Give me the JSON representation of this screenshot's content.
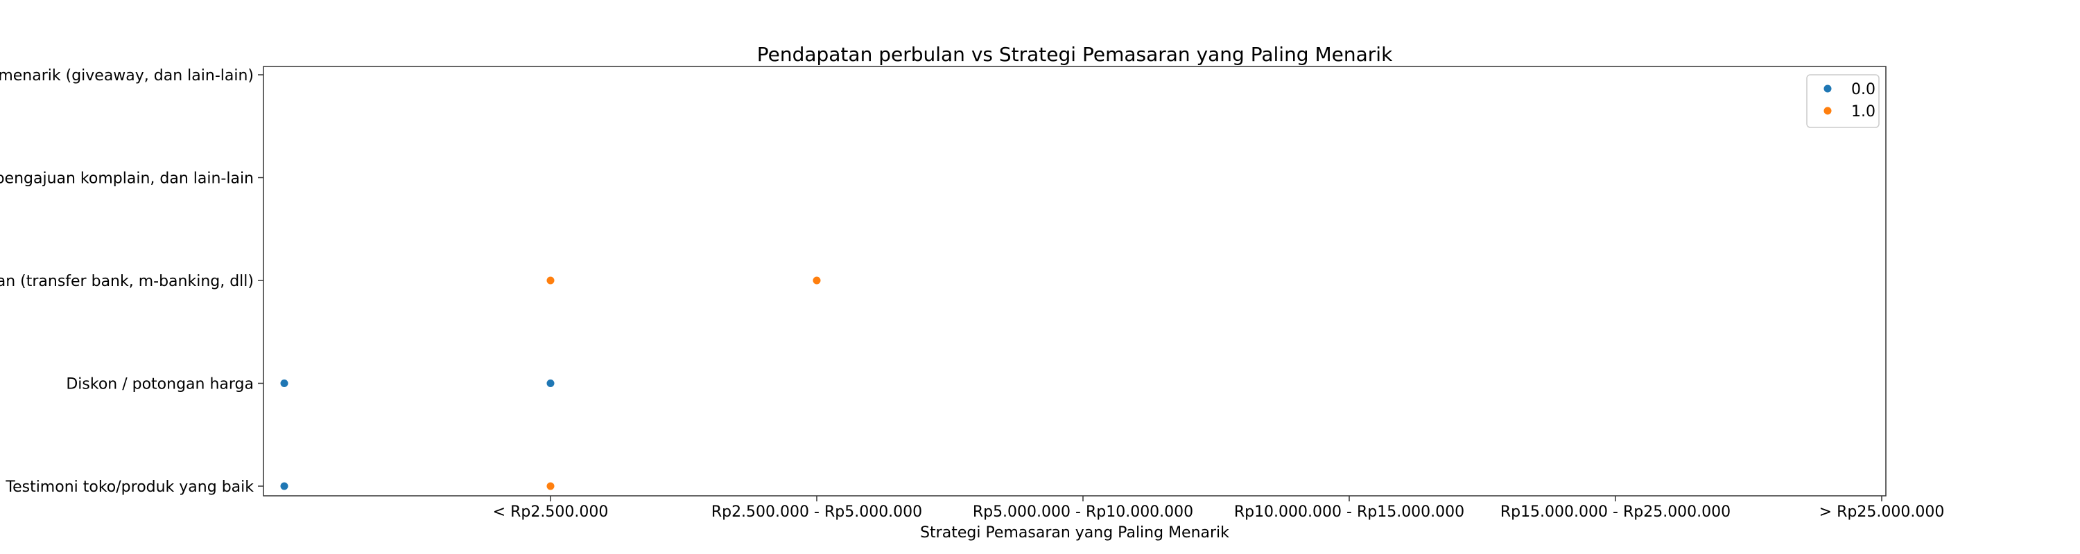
{
  "chart_data": {
    "type": "scatter",
    "title": "Pendapatan perbulan vs Strategi Pemasaran yang Paling Menarik",
    "xlabel": "Strategi Pemasaran yang Paling Menarik",
    "ylabel": "",
    "x_categories": [
      "",
      "< Rp2.500.000",
      "Rp2.500.000 - Rp5.000.000",
      "Rp5.000.000 - Rp10.000.000",
      "Rp10.000.000 - Rp15.000.000",
      "Rp15.000.000 - Rp25.000.000",
      "> Rp25.000.000"
    ],
    "y_categories": [
      "Testimoni toko/produk yang baik",
      "Diskon / potongan harga",
      "Kemudahan pembayaran (transfer bank, m-banking, dll)",
      "Kemudahan pengajuan komplain, dan lain-lain",
      "Promo menarik (giveaway, dan lain-lain)"
    ],
    "legend_position": "top-right",
    "grid": false,
    "series": [
      {
        "name": "0.0",
        "color": "#1f77b4",
        "points": [
          {
            "x": "",
            "y": "Testimoni toko/produk yang baik"
          },
          {
            "x": "",
            "y": "Diskon / potongan harga"
          },
          {
            "x": "< Rp2.500.000",
            "y": "Diskon / potongan harga"
          }
        ]
      },
      {
        "name": "1.0",
        "color": "#ff7f0e",
        "points": [
          {
            "x": "< Rp2.500.000",
            "y": "Testimoni toko/produk yang baik"
          },
          {
            "x": "< Rp2.500.000",
            "y": "Kemudahan pembayaran (transfer bank, m-banking, dll)"
          },
          {
            "x": "Rp2.500.000 - Rp5.000.000",
            "y": "Kemudahan pembayaran (transfer bank, m-banking, dll)"
          }
        ]
      }
    ]
  }
}
